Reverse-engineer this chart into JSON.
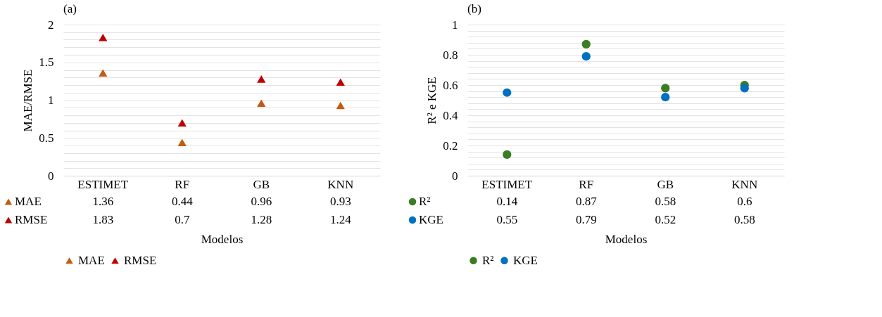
{
  "chart_data": [
    {
      "type": "scatter",
      "title": "(a)",
      "xlabel": "Modelos",
      "ylabel": "MAE/RMSE",
      "categories": [
        "ESTIMET",
        "RF",
        "GB",
        "KNN"
      ],
      "series": [
        {
          "name": "MAE",
          "color": "#c55a11",
          "values": [
            1.36,
            0.44,
            0.96,
            0.93
          ]
        },
        {
          "name": "RMSE",
          "color": "#c00000",
          "values": [
            1.83,
            0.7,
            1.28,
            1.24
          ]
        }
      ],
      "ylim": [
        0,
        2
      ],
      "yticks": [
        0,
        {
          "value": 0.1,
          "label": null
        },
        {
          "value": 0.2,
          "label": null
        },
        {
          "value": 0.3,
          "label": null
        },
        {
          "value": 0.4,
          "label": null
        },
        0.5,
        {
          "value": 0.6,
          "label": null
        },
        {
          "value": 0.7,
          "label": null
        },
        {
          "value": 0.8,
          "label": null
        },
        {
          "value": 0.9,
          "label": null
        },
        1,
        {
          "value": 1.1,
          "label": null
        },
        {
          "value": 1.2,
          "label": null
        },
        {
          "value": 1.3,
          "label": null
        },
        {
          "value": 1.4,
          "label": null
        },
        1.5,
        {
          "value": 1.6,
          "label": null
        },
        {
          "value": 1.7,
          "label": null
        },
        {
          "value": 1.8,
          "label": null
        },
        {
          "value": 1.9,
          "label": null
        },
        2
      ],
      "grid": "y",
      "legend": "bottom",
      "marker": "triangle",
      "data_labels": true
    },
    {
      "type": "scatter",
      "title": "(b)",
      "xlabel": "Modelos",
      "ylabel": "R² e KGE",
      "categories": [
        "ESTIMET",
        "RF",
        "GB",
        "KNN"
      ],
      "series": [
        {
          "name": "R²",
          "color": "#3a7d22",
          "values": [
            0.14,
            0.87,
            0.58,
            0.6
          ]
        },
        {
          "name": "KGE",
          "color": "#0070c0",
          "values": [
            0.55,
            0.79,
            0.52,
            0.58
          ]
        }
      ],
      "ylim": [
        0,
        1
      ],
      "yticks": [
        0,
        {
          "value": 0.04,
          "label": null
        },
        {
          "value": 0.08,
          "label": null
        },
        {
          "value": 0.12,
          "label": null
        },
        {
          "value": 0.16,
          "label": null
        },
        0.2,
        {
          "value": 0.24,
          "label": null
        },
        {
          "value": 0.28,
          "label": null
        },
        {
          "value": 0.32,
          "label": null
        },
        {
          "value": 0.36,
          "label": null
        },
        0.4,
        {
          "value": 0.44,
          "label": null
        },
        {
          "value": 0.48,
          "label": null
        },
        {
          "value": 0.52,
          "label": null
        },
        {
          "value": 0.56,
          "label": null
        },
        0.6,
        {
          "value": 0.64,
          "label": null
        },
        {
          "value": 0.68,
          "label": null
        },
        {
          "value": 0.72,
          "label": null
        },
        {
          "value": 0.76,
          "label": null
        },
        0.8,
        {
          "value": 0.84,
          "label": null
        },
        {
          "value": 0.88,
          "label": null
        },
        {
          "value": 0.92,
          "label": null
        },
        {
          "value": 0.96,
          "label": null
        },
        1
      ],
      "grid": "y",
      "legend": "bottom",
      "marker": "circle",
      "data_labels": true
    }
  ]
}
